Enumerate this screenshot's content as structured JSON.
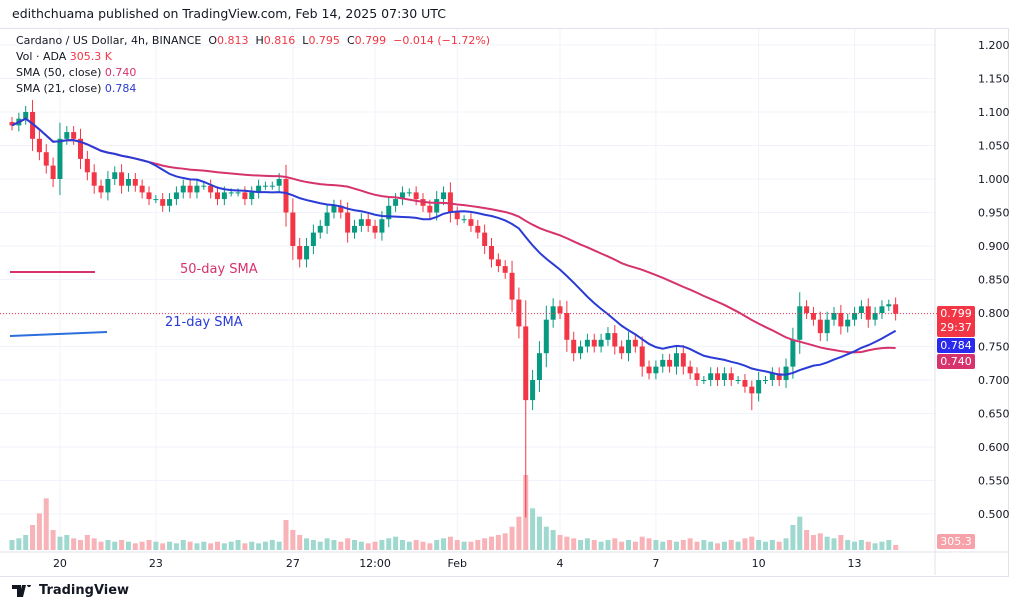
{
  "published": "edithchuama published on TradingView.com, Feb 14, 2025 07:30 UTC",
  "legend": {
    "symbol": "Cardano / US Dollar, 4h, BINANCE",
    "o_label": "O",
    "o": "0.813",
    "h_label": "H",
    "h": "0.816",
    "l_label": "L",
    "l": "0.795",
    "c_label": "C",
    "c": "0.799",
    "change": "−0.014 (−1.72%)",
    "vol_label": "Vol · ADA",
    "vol": "305.3 K",
    "sma50_label": "SMA (50, close)",
    "sma50": "0.740",
    "sma21_label": "SMA (21, close)",
    "sma21": "0.784"
  },
  "annotations": {
    "sma50": "50-day SMA",
    "sma21": "21-day SMA"
  },
  "tags": {
    "price": "0.799",
    "countdown": "29:37",
    "sma21": "0.784",
    "sma50": "0.740",
    "volume": "305.3 K"
  },
  "logo": "TradingView",
  "colors": {
    "up": "#089981",
    "down": "#f23645",
    "sma50": "#d6336c",
    "sma21": "#2a3bd6"
  },
  "chart_data": {
    "type": "candlestick",
    "y_ticks": [
      "1.200",
      "1.150",
      "1.100",
      "1.050",
      "1.000",
      "0.950",
      "0.900",
      "0.850",
      "0.800",
      "0.750",
      "0.700",
      "0.650",
      "0.600",
      "0.550",
      "0.500"
    ],
    "ylim": [
      0.47,
      1.22
    ],
    "x_ticks": [
      {
        "label": "20",
        "index": 7
      },
      {
        "label": "23",
        "index": 21
      },
      {
        "label": "27",
        "index": 41
      },
      {
        "label": "12:00",
        "index": 53
      },
      {
        "label": "Feb",
        "index": 65
      },
      {
        "label": "4",
        "index": 80
      },
      {
        "label": "7",
        "index": 94
      },
      {
        "label": "10",
        "index": 109
      },
      {
        "label": "13",
        "index": 123
      }
    ],
    "close": [
      1.08,
      1.09,
      1.1,
      1.06,
      1.04,
      1.02,
      1.0,
      1.06,
      1.07,
      1.06,
      1.03,
      1.01,
      0.99,
      0.98,
      1.0,
      1.01,
      0.99,
      1.0,
      0.99,
      0.98,
      0.97,
      0.97,
      0.96,
      0.97,
      0.98,
      0.99,
      0.98,
      0.99,
      0.99,
      0.98,
      0.97,
      0.98,
      0.98,
      0.98,
      0.97,
      0.98,
      0.99,
      0.99,
      0.99,
      1.0,
      0.95,
      0.9,
      0.88,
      0.9,
      0.92,
      0.93,
      0.95,
      0.96,
      0.95,
      0.92,
      0.93,
      0.94,
      0.93,
      0.92,
      0.94,
      0.96,
      0.97,
      0.98,
      0.98,
      0.97,
      0.96,
      0.95,
      0.97,
      0.98,
      0.95,
      0.94,
      0.94,
      0.93,
      0.92,
      0.9,
      0.88,
      0.87,
      0.86,
      0.82,
      0.78,
      0.67,
      0.7,
      0.74,
      0.79,
      0.81,
      0.8,
      0.76,
      0.74,
      0.75,
      0.76,
      0.75,
      0.76,
      0.77,
      0.75,
      0.74,
      0.76,
      0.75,
      0.72,
      0.71,
      0.72,
      0.73,
      0.72,
      0.74,
      0.72,
      0.71,
      0.7,
      0.7,
      0.71,
      0.7,
      0.71,
      0.7,
      0.7,
      0.69,
      0.68,
      0.7,
      0.7,
      0.71,
      0.7,
      0.72,
      0.76,
      0.81,
      0.8,
      0.79,
      0.77,
      0.79,
      0.8,
      0.78,
      0.79,
      0.8,
      0.81,
      0.79,
      0.8,
      0.81,
      0.813,
      0.799
    ],
    "volume_k": [
      600,
      700,
      900,
      1500,
      2200,
      3100,
      1200,
      800,
      900,
      700,
      600,
      900,
      700,
      500,
      600,
      500,
      600,
      500,
      400,
      500,
      600,
      500,
      400,
      500,
      400,
      600,
      500,
      400,
      500,
      400,
      500,
      400,
      500,
      600,
      400,
      500,
      400,
      500,
      600,
      500,
      1800,
      1200,
      900,
      700,
      600,
      500,
      700,
      600,
      500,
      700,
      600,
      500,
      400,
      500,
      600,
      700,
      800,
      600,
      500,
      600,
      500,
      400,
      600,
      700,
      800,
      600,
      500,
      500,
      600,
      700,
      800,
      900,
      1000,
      1400,
      2000,
      4500,
      2500,
      2000,
      1400,
      1200,
      900,
      800,
      700,
      600,
      700,
      600,
      500,
      600,
      700,
      500,
      600,
      500,
      800,
      700,
      600,
      500,
      600,
      500,
      600,
      700,
      500,
      600,
      500,
      400,
      500,
      600,
      500,
      700,
      800,
      600,
      500,
      600,
      500,
      700,
      1500,
      2000,
      1200,
      900,
      1000,
      800,
      700,
      900,
      600,
      500,
      600,
      500,
      400,
      500,
      600,
      305.3
    ]
  }
}
